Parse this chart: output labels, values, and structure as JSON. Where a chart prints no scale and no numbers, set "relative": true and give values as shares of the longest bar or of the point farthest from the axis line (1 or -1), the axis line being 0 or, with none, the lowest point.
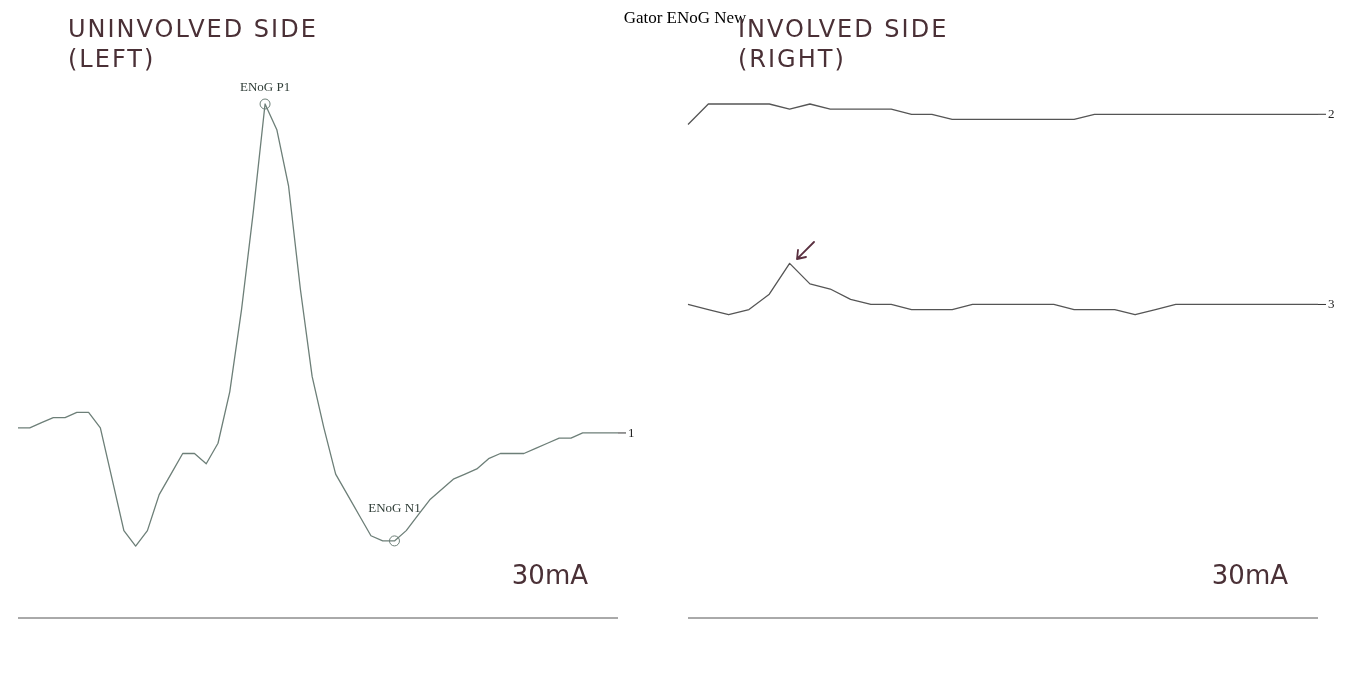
{
  "chart_data": [
    {
      "type": "line",
      "title": "Gator ENoG New",
      "subtitle": "UNINVOLVED SIDE (LEFT)",
      "relative": true,
      "categories": [
        null,
        null,
        null,
        null,
        null,
        null,
        null,
        null,
        null,
        null,
        null,
        null,
        null,
        null,
        null,
        null,
        null,
        null,
        null,
        null,
        null,
        null,
        null,
        null,
        null,
        null,
        null,
        null,
        null,
        null,
        null,
        null,
        null,
        null,
        null,
        null,
        null,
        null,
        null,
        null,
        null,
        null,
        null,
        null,
        null,
        null,
        null,
        null,
        null,
        null,
        null,
        null
      ],
      "series": [
        {
          "name": "1",
          "color": "#6d7f78",
          "values": [
            0.37,
            0.37,
            0.38,
            0.39,
            0.39,
            0.4,
            0.4,
            0.37,
            0.27,
            0.17,
            0.14,
            0.17,
            0.24,
            0.28,
            0.32,
            0.32,
            0.3,
            0.34,
            0.44,
            0.6,
            0.79,
            1.0,
            0.95,
            0.84,
            0.64,
            0.47,
            0.37,
            0.28,
            0.24,
            0.2,
            0.16,
            0.15,
            0.15,
            0.17,
            0.2,
            0.23,
            0.25,
            0.27,
            0.28,
            0.29,
            0.31,
            0.32,
            0.32,
            0.32,
            0.33,
            0.34,
            0.35,
            0.35,
            0.36,
            0.36,
            0.36,
            0.36
          ]
        }
      ],
      "annotations": [
        {
          "text": "ENoG P1",
          "y": 1.0
        },
        {
          "text": "ENoG N1",
          "y": 0.15
        },
        "30mA"
      ],
      "grid": false,
      "legend": false,
      "marker": "none",
      "line_style": "solid"
    },
    {
      "type": "line",
      "subtitle": "INVOLVED SIDE (RIGHT)",
      "relative": true,
      "categories": [
        null,
        null,
        null,
        null,
        null,
        null,
        null,
        null,
        null,
        null,
        null,
        null,
        null,
        null,
        null,
        null,
        null,
        null,
        null,
        null,
        null,
        null,
        null,
        null,
        null,
        null,
        null,
        null,
        null,
        null,
        null,
        null
      ],
      "series": [
        {
          "name": "2",
          "color": "#555555",
          "values": [
            0.96,
            1.0,
            1.0,
            1.0,
            1.0,
            0.99,
            1.0,
            0.99,
            0.99,
            0.99,
            0.99,
            0.98,
            0.98,
            0.97,
            0.97,
            0.97,
            0.97,
            0.97,
            0.97,
            0.97,
            0.98,
            0.98,
            0.98,
            0.98,
            0.98,
            0.98,
            0.98,
            0.98,
            0.98,
            0.98,
            0.98,
            0.98
          ]
        },
        {
          "name": "3",
          "color": "#555555",
          "values": [
            0.61,
            0.6,
            0.59,
            0.6,
            0.63,
            0.69,
            0.65,
            0.64,
            0.62,
            0.61,
            0.61,
            0.6,
            0.6,
            0.6,
            0.61,
            0.61,
            0.61,
            0.61,
            0.61,
            0.6,
            0.6,
            0.6,
            0.59,
            0.6,
            0.61,
            0.61,
            0.61,
            0.61,
            0.61,
            0.61,
            0.61,
            0.61
          ]
        }
      ],
      "annotations": [
        "30mA"
      ],
      "grid": false,
      "legend": false,
      "marker": "none",
      "line_style": "solid"
    }
  ]
}
